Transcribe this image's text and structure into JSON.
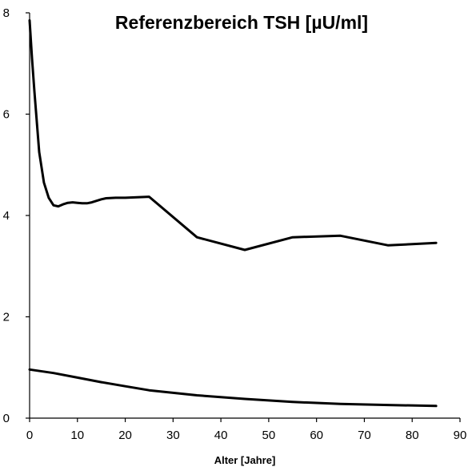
{
  "chart_data": {
    "type": "line",
    "title": "Referenzbereich TSH [µU/ml]",
    "xlabel": "Alter [Jahre]",
    "ylabel": "",
    "xlim": [
      0,
      90
    ],
    "ylim": [
      0,
      8
    ],
    "x_ticks": [
      0,
      10,
      20,
      30,
      40,
      50,
      60,
      70,
      80,
      90
    ],
    "y_ticks": [
      0,
      2,
      4,
      6,
      8
    ],
    "grid": false,
    "legend": "none",
    "line_color": "#000000",
    "series": [
      {
        "x": [
          0,
          0.5,
          1,
          2,
          3,
          4,
          5,
          6,
          7,
          8,
          9,
          10,
          11,
          12,
          13,
          14,
          15,
          16,
          18,
          20,
          25,
          35,
          45,
          55,
          65,
          75,
          85
        ],
        "values": [
          7.85,
          7.1,
          6.45,
          5.25,
          4.65,
          4.35,
          4.2,
          4.18,
          4.22,
          4.25,
          4.26,
          4.25,
          4.24,
          4.24,
          4.26,
          4.29,
          4.32,
          4.34,
          4.35,
          4.35,
          4.37,
          3.57,
          3.32,
          3.57,
          3.6,
          3.41,
          3.46
        ]
      },
      {
        "x": [
          0,
          5,
          10,
          15,
          20,
          25,
          35,
          45,
          55,
          65,
          75,
          85
        ],
        "values": [
          0.96,
          0.89,
          0.8,
          0.71,
          0.63,
          0.55,
          0.45,
          0.38,
          0.32,
          0.28,
          0.26,
          0.24
        ]
      }
    ]
  }
}
